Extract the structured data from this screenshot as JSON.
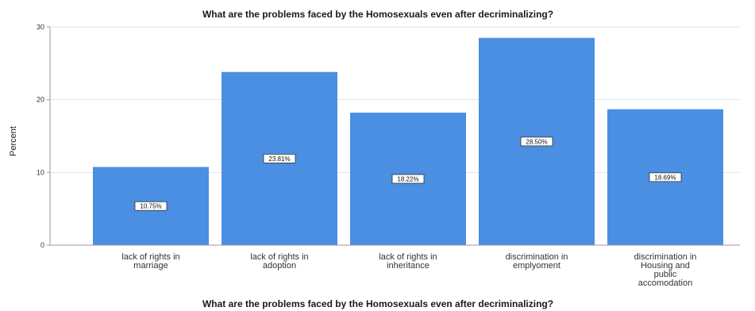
{
  "chart_data": {
    "type": "bar",
    "title": "What are the problems faced by the Homosexuals even after decriminalizing?",
    "xlabel": "What are the problems faced by the Homosexuals even after decriminalizing?",
    "ylabel": "Percent",
    "categories": [
      "lack of rights in marriage",
      "lack of rights in adoption",
      "lack of rights in inheritance",
      "discrimination in emplyoment",
      "discrimination in Housing and public accomodation"
    ],
    "category_lines": [
      [
        "lack of rights in",
        "marriage"
      ],
      [
        "lack of rights in",
        "adoption"
      ],
      [
        "lack of rights in",
        "inheritance"
      ],
      [
        "discrimination in",
        "emplyoment"
      ],
      [
        "discrimination in",
        "Housing and",
        "public",
        "accomodation"
      ]
    ],
    "values": [
      10.75,
      23.81,
      18.22,
      28.5,
      18.69
    ],
    "data_labels": [
      "10.75%",
      "23.81%",
      "18.22%",
      "28.50%",
      "18.69%"
    ],
    "ylim": [
      0,
      30
    ],
    "yticks": [
      0,
      10,
      20,
      30
    ],
    "grid": true,
    "bar_color": "#4a8fe2"
  }
}
